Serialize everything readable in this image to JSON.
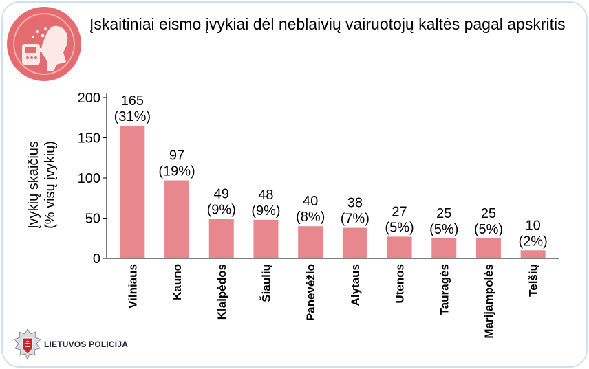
{
  "header": {
    "title": "Įskaitiniai eismo įvykiai dėl neblaivių vairuotojų kaltės pagal apskritis",
    "icon": "breathalyzer-icon"
  },
  "footer": {
    "logo_text": "LIETUVOS POLICIJA",
    "logo_icon": "police-star-badge-icon"
  },
  "colors": {
    "bar": "#e8888e",
    "icon_circle": "#e46b70",
    "card_border": "#cfe0f2"
  },
  "chart_data": {
    "type": "bar",
    "title": "Įskaitiniai eismo įvykiai dėl neblaivių vairuotojų kaltės pagal apskritis",
    "xlabel": "",
    "ylabel_lines": [
      "Įvykių skaičius",
      "(% visų įvykių)"
    ],
    "ylim": [
      0,
      200
    ],
    "yticks": [
      0,
      50,
      100,
      150,
      200
    ],
    "grid": false,
    "categories": [
      "Vilniaus",
      "Kauno",
      "Klaipėdos",
      "Šiaulių",
      "Panevėžio",
      "Alytaus",
      "Utenos",
      "Tauragės",
      "Marijampolės",
      "Telšių"
    ],
    "values": [
      165,
      97,
      49,
      48,
      40,
      38,
      27,
      25,
      25,
      10
    ],
    "labels": [
      "(31%)",
      "(19%)",
      "(9%)",
      "(9%)",
      "(8%)",
      "(7%)",
      "(5%)",
      "(5%)",
      "(5%)",
      "(2%)"
    ]
  }
}
